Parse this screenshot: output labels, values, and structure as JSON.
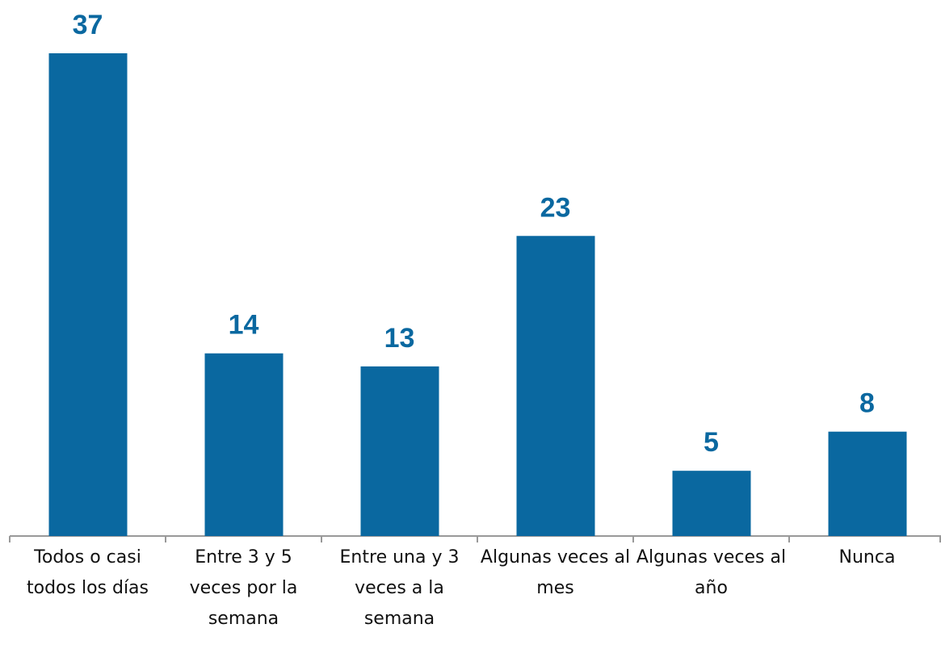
{
  "chart_data": {
    "type": "bar",
    "categories": [
      "Todos o casi todos los días",
      "Entre 3 y 5 veces por la semana",
      "Entre una y 3 veces a la semana",
      "Algunas veces al mes",
      "Algunas veces al año",
      "Nunca"
    ],
    "values": [
      37,
      14,
      13,
      23,
      5,
      8
    ],
    "color": "#0a68a0"
  }
}
